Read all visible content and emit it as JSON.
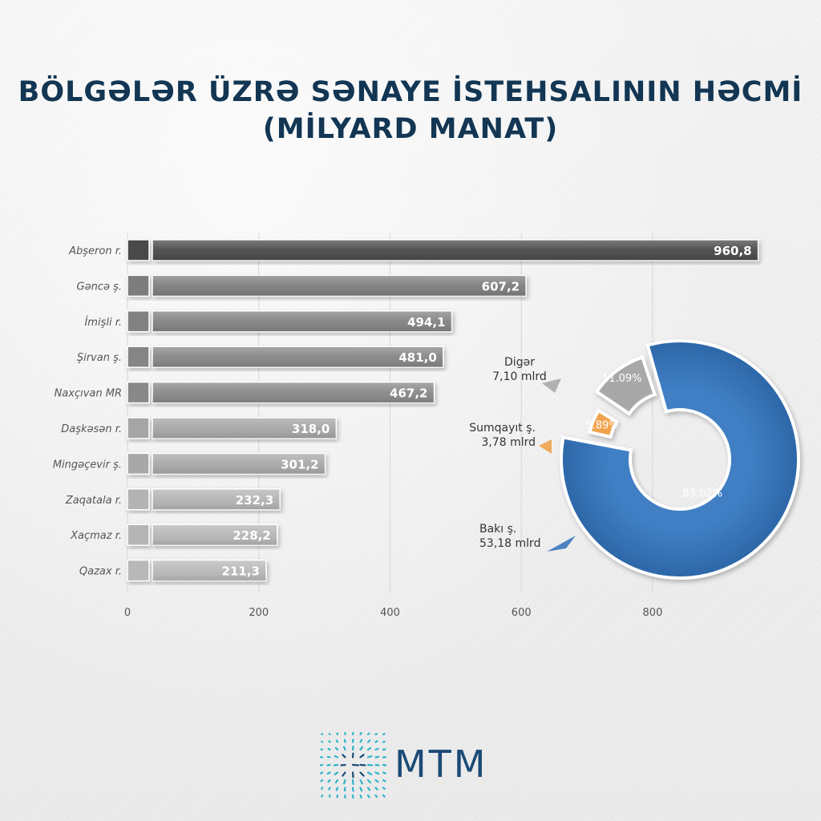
{
  "title_line1": "BÖLGƏLƏR ÜZRƏ SƏNAYE İSTEHSALININ HƏCMİ",
  "title_line2": "(MİLYARD MANAT)",
  "logo_text": "MTM",
  "chart_data": [
    {
      "type": "bar",
      "orientation": "horizontal",
      "categories": [
        "Abşeron r.",
        "Gəncə ş.",
        "İmişli r.",
        "Şirvan ş.",
        "Naxçıvan MR",
        "Daşkəsən r.",
        "Mingəçevir ş.",
        "Zaqatala r.",
        "Xaçmaz r.",
        "Qazax r."
      ],
      "values": [
        960.8,
        607.2,
        494.1,
        481.0,
        467.2,
        318.0,
        301.2,
        232.3,
        228.2,
        211.3
      ],
      "value_labels": [
        "960,8",
        "607,2",
        "494,1",
        "481,0",
        "467,2",
        "318,0",
        "301,2",
        "232,3",
        "228,2",
        "211,3"
      ],
      "xticks": [
        "0",
        "200",
        "400",
        "600",
        "800"
      ],
      "xlim": [
        0,
        960.8
      ],
      "grid": true,
      "colors": [
        "#4a4a4a",
        "#7d7d7d",
        "#828282",
        "#858585",
        "#888888",
        "#a5a5a5",
        "#a8a8a8",
        "#b3b3b3",
        "#b5b5b5",
        "#b8b8b8"
      ]
    },
    {
      "type": "pie",
      "variant": "donut",
      "slices": [
        {
          "name": "Bakı ş.",
          "value": 53.18,
          "value_label": "53,18 mlrd",
          "percent": 83.02,
          "percent_label": "83.02%",
          "color": "#3a78bd"
        },
        {
          "name": "Sumqayıt ş.",
          "value": 3.78,
          "value_label": "3,78 mlrd",
          "percent": 5.89,
          "percent_label": "5.89%",
          "color": "#f0a34e"
        },
        {
          "name": "Digər",
          "value": 7.1,
          "value_label": "7,10 mlrd",
          "percent": 11.09,
          "percent_label": "11.09%",
          "color": "#a8a8a8"
        }
      ]
    }
  ]
}
